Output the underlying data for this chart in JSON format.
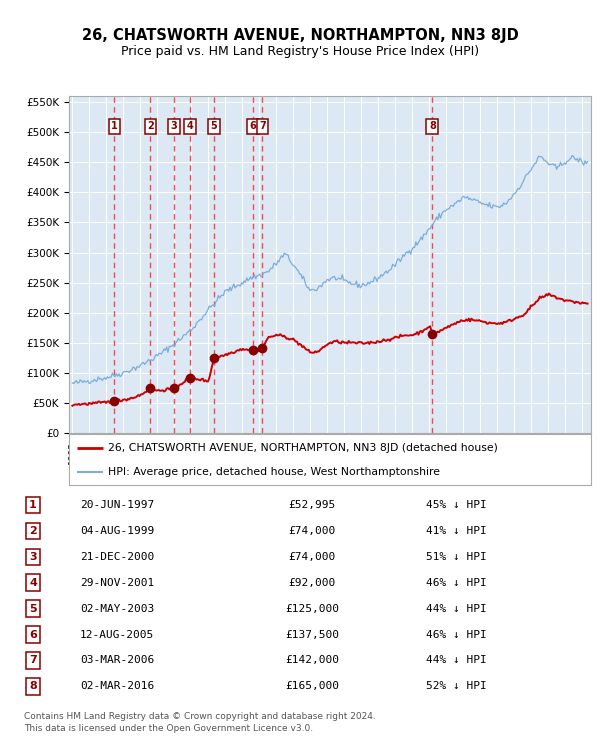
{
  "title": "26, CHATSWORTH AVENUE, NORTHAMPTON, NN3 8JD",
  "subtitle": "Price paid vs. HM Land Registry's House Price Index (HPI)",
  "title_fontsize": 10.5,
  "subtitle_fontsize": 9,
  "background_color": "#ffffff",
  "plot_bg_color": "#dde8f5",
  "ylim": [
    0,
    560000
  ],
  "yticks": [
    0,
    50000,
    100000,
    150000,
    200000,
    250000,
    300000,
    350000,
    400000,
    450000,
    500000,
    550000
  ],
  "ytick_labels": [
    "£0",
    "£50K",
    "£100K",
    "£150K",
    "£200K",
    "£250K",
    "£300K",
    "£350K",
    "£400K",
    "£450K",
    "£500K",
    "£550K"
  ],
  "xlim_start": 1994.8,
  "xlim_end": 2025.5,
  "sale_dates_year": [
    1997.47,
    1999.59,
    2000.97,
    2001.91,
    2003.33,
    2005.61,
    2006.17,
    2016.17
  ],
  "sale_prices": [
    52995,
    74000,
    74000,
    92000,
    125000,
    137500,
    142000,
    165000
  ],
  "sale_labels": [
    "1",
    "2",
    "3",
    "4",
    "5",
    "6",
    "7",
    "8"
  ],
  "legend_house_label": "26, CHATSWORTH AVENUE, NORTHAMPTON, NN3 8JD (detached house)",
  "legend_hpi_label": "HPI: Average price, detached house, West Northamptonshire",
  "table_rows": [
    [
      "1",
      "20-JUN-1997",
      "£52,995",
      "45% ↓ HPI"
    ],
    [
      "2",
      "04-AUG-1999",
      "£74,000",
      "41% ↓ HPI"
    ],
    [
      "3",
      "21-DEC-2000",
      "£74,000",
      "51% ↓ HPI"
    ],
    [
      "4",
      "29-NOV-2001",
      "£92,000",
      "46% ↓ HPI"
    ],
    [
      "5",
      "02-MAY-2003",
      "£125,000",
      "44% ↓ HPI"
    ],
    [
      "6",
      "12-AUG-2005",
      "£137,500",
      "46% ↓ HPI"
    ],
    [
      "7",
      "03-MAR-2006",
      "£142,000",
      "44% ↓ HPI"
    ],
    [
      "8",
      "02-MAR-2016",
      "£165,000",
      "52% ↓ HPI"
    ]
  ],
  "footer": "Contains HM Land Registry data © Crown copyright and database right 2024.\nThis data is licensed under the Open Government Licence v3.0.",
  "house_line_color": "#cc0000",
  "hpi_line_color": "#7aaed6",
  "vline_color": "#ee3333",
  "marker_color": "#880000"
}
